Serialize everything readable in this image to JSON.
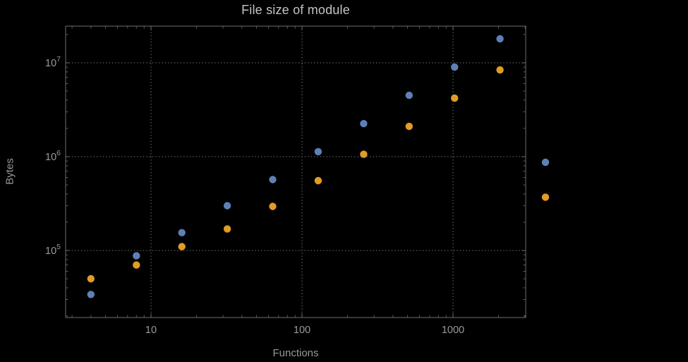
{
  "chart_data": {
    "type": "scatter",
    "title": "File size of module",
    "xlabel": "Functions",
    "ylabel": "Bytes",
    "x_scale": "log",
    "y_scale": "log",
    "grid": "dotted-major",
    "x_range_approx": [
      2.7,
      3000
    ],
    "y_range_approx": [
      20000,
      24000000
    ],
    "x_ticks": [
      {
        "value": 10,
        "label": "10"
      },
      {
        "value": 100,
        "label": "100"
      },
      {
        "value": 1000,
        "label": "1000"
      }
    ],
    "y_ticks": [
      {
        "value": 100000,
        "mantissa": "10",
        "exponent": "5"
      },
      {
        "value": 1000000,
        "mantissa": "10",
        "exponent": "6"
      },
      {
        "value": 10000000,
        "mantissa": "10",
        "exponent": "7"
      }
    ],
    "series": [
      {
        "name": "series-blue",
        "color": "#5e81b5",
        "x": [
          4,
          8,
          16,
          32,
          64,
          128,
          256,
          512,
          1024,
          2048,
          4096
        ],
        "y": [
          34000,
          88000,
          155000,
          300000,
          570000,
          1130000,
          2250000,
          4500000,
          9000000,
          18000000,
          870000
        ]
      },
      {
        "name": "series-orange",
        "color": "#e19c24",
        "x": [
          4,
          8,
          16,
          32,
          64,
          128,
          256,
          512,
          1024,
          2048,
          4096
        ],
        "y": [
          50000,
          70000,
          110000,
          170000,
          295000,
          555000,
          1060000,
          2100000,
          4200000,
          8400000,
          370000
        ]
      }
    ]
  },
  "colors": {
    "background": "#000000",
    "frame": "#6e6e6e",
    "grid": "#8a8a8a",
    "label": "#9a9a9a",
    "title": "#c4c4c4"
  }
}
